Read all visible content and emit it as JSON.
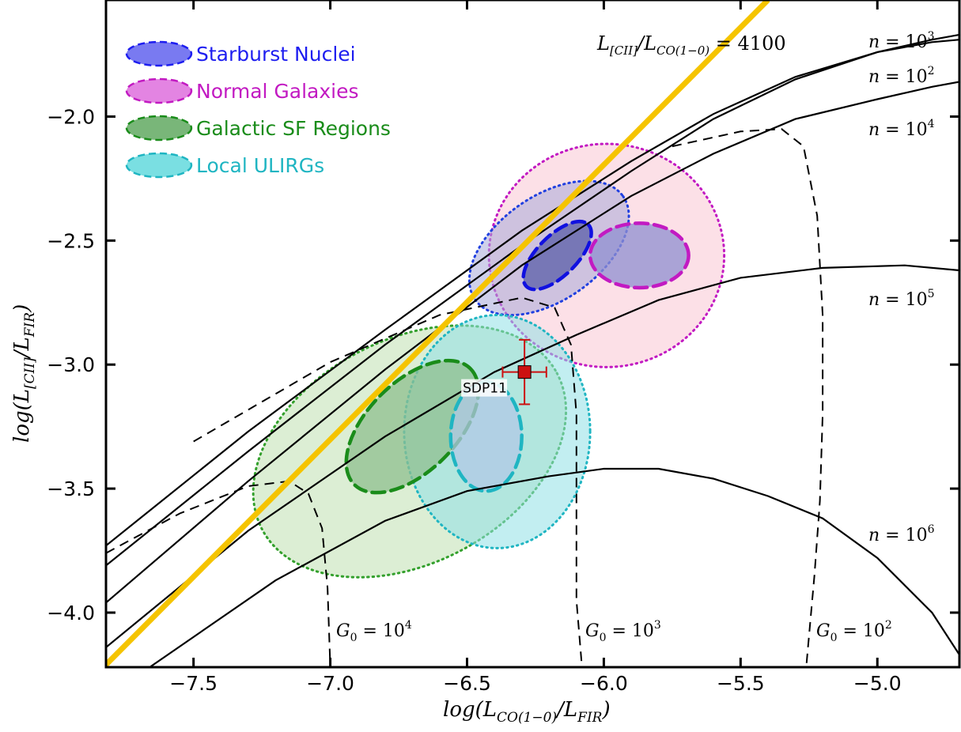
{
  "chart_data": {
    "type": "scatter",
    "xlabel": "log(L_CO(1−0)/L_FIR)",
    "ylabel": "log(L_[CII]/L_FIR)",
    "xlim": [
      -7.82,
      -4.7
    ],
    "ylim": [
      -4.22,
      -1.53
    ],
    "xticks": [
      -7.5,
      -7.0,
      -6.5,
      -6.0,
      -5.5,
      -5.0
    ],
    "yticks": [
      -4.0,
      -3.5,
      -3.0,
      -2.5,
      -2.0
    ],
    "xtick_labels": [
      "−7.5",
      "−7.0",
      "−6.5",
      "−6.0",
      "−5.5",
      "−5.0"
    ],
    "ytick_labels": [
      "−4.0",
      "−3.5",
      "−3.0",
      "−2.5",
      "−2.0"
    ],
    "legend_position": "top-left",
    "grid": false,
    "legend": [
      {
        "label": "Starburst Nuclei",
        "color": "#1e1ef0"
      },
      {
        "label": "Normal Galaxies",
        "color": "#c21ac2"
      },
      {
        "label": "Galactic SF Regions",
        "color": "#1a8c1a"
      },
      {
        "label": "Local ULIRGs",
        "color": "#1fb5c2"
      }
    ],
    "regions": [
      {
        "name": "Galactic SF Regions",
        "kind": "outer",
        "cx": -6.71,
        "cy": -3.35,
        "rx": 0.61,
        "ry": 0.45,
        "angle": 28,
        "fill": "#bfe0b0",
        "stroke": "#33a02c"
      },
      {
        "name": "Normal Galaxies",
        "kind": "outer",
        "cx": -5.99,
        "cy": -2.56,
        "rx": 0.43,
        "ry": 0.45,
        "angle": 0,
        "fill": "#f9c6d4",
        "stroke": "#c21ac2"
      },
      {
        "name": "Starburst Nuclei",
        "kind": "outer",
        "cx": -6.2,
        "cy": -2.53,
        "rx": 0.33,
        "ry": 0.21,
        "angle": 35,
        "fill": "#a8a9d8",
        "stroke": "#2040e0"
      },
      {
        "name": "Local ULIRGs",
        "kind": "outer",
        "cx": -6.39,
        "cy": -3.27,
        "rx": 0.34,
        "ry": 0.47,
        "angle": 0,
        "fill": "#8fe0e6",
        "stroke": "#1fb5c2"
      },
      {
        "name": "Galactic SF Regions",
        "kind": "inner",
        "cx": -6.7,
        "cy": -3.25,
        "rx": 0.3,
        "ry": 0.18,
        "angle": 45,
        "fill": "#8fbf8f",
        "stroke": "#1a8c1a"
      },
      {
        "name": "Normal Galaxies",
        "kind": "inner",
        "cx": -5.87,
        "cy": -2.56,
        "rx": 0.18,
        "ry": 0.13,
        "angle": 0,
        "fill": "#8f8fd0",
        "stroke": "#c21ac2"
      },
      {
        "name": "Starburst Nuclei",
        "kind": "inner",
        "cx": -6.17,
        "cy": -2.56,
        "rx": 0.16,
        "ry": 0.08,
        "angle": 45,
        "fill": "#5a5ea8",
        "stroke": "#1010e0"
      },
      {
        "name": "Local ULIRGs",
        "kind": "inner",
        "cx": -6.43,
        "cy": -3.29,
        "rx": 0.13,
        "ry": 0.22,
        "angle": 0,
        "fill": "#b0c8e6",
        "stroke": "#1fb5c2"
      }
    ],
    "ratio_line": {
      "label": "L_[CII]/L_CO(1−0) = 4100",
      "color": "#f5c400",
      "points": [
        [
          -7.82,
          -4.21
        ],
        [
          -5.4,
          -1.53
        ]
      ]
    },
    "density_curves": [
      {
        "label": "n=10^3",
        "label_x": -4.98,
        "label_y": -1.65,
        "points": [
          [
            -7.82,
            -3.81
          ],
          [
            -7.3,
            -3.35
          ],
          [
            -6.8,
            -2.92
          ],
          [
            -6.3,
            -2.52
          ],
          [
            -5.9,
            -2.22
          ],
          [
            -5.6,
            -2.01
          ],
          [
            -5.3,
            -1.85
          ],
          [
            -5.0,
            -1.74
          ],
          [
            -4.8,
            -1.69
          ],
          [
            -4.7,
            -1.67
          ]
        ]
      },
      {
        "label": "n=10^2",
        "label_x": -4.98,
        "label_y": -1.79,
        "points": [
          [
            -7.82,
            -3.73
          ],
          [
            -7.3,
            -3.27
          ],
          [
            -6.8,
            -2.86
          ],
          [
            -6.3,
            -2.46
          ],
          [
            -5.9,
            -2.18
          ],
          [
            -5.6,
            -1.99
          ],
          [
            -5.3,
            -1.84
          ],
          [
            -5.0,
            -1.74
          ],
          [
            -4.8,
            -1.7
          ],
          [
            -4.7,
            -1.69
          ]
        ]
      },
      {
        "label": "n=10^4",
        "label_x": -4.98,
        "label_y": -2.06,
        "points": [
          [
            -7.82,
            -3.96
          ],
          [
            -7.3,
            -3.47
          ],
          [
            -6.8,
            -3.02
          ],
          [
            -6.3,
            -2.6
          ],
          [
            -5.9,
            -2.32
          ],
          [
            -5.6,
            -2.15
          ],
          [
            -5.3,
            -2.01
          ],
          [
            -5.0,
            -1.93
          ],
          [
            -4.8,
            -1.88
          ],
          [
            -4.7,
            -1.86
          ]
        ]
      },
      {
        "label": "n=10^5",
        "label_x": -4.98,
        "label_y": -2.78,
        "points": [
          [
            -7.82,
            -4.14
          ],
          [
            -7.3,
            -3.67
          ],
          [
            -6.8,
            -3.29
          ],
          [
            -6.4,
            -3.03
          ],
          [
            -6.1,
            -2.88
          ],
          [
            -5.8,
            -2.74
          ],
          [
            -5.5,
            -2.65
          ],
          [
            -5.2,
            -2.61
          ],
          [
            -4.9,
            -2.6
          ],
          [
            -4.7,
            -2.62
          ]
        ]
      },
      {
        "label": "n=10^6",
        "label_x": -4.98,
        "label_y": -3.67,
        "points": [
          [
            -7.66,
            -4.22
          ],
          [
            -7.2,
            -3.87
          ],
          [
            -6.8,
            -3.63
          ],
          [
            -6.5,
            -3.51
          ],
          [
            -6.2,
            -3.45
          ],
          [
            -6.0,
            -3.42
          ],
          [
            -5.8,
            -3.42
          ],
          [
            -5.6,
            -3.46
          ],
          [
            -5.4,
            -3.53
          ],
          [
            -5.2,
            -3.62
          ],
          [
            -5.0,
            -3.78
          ],
          [
            -4.8,
            -4.0
          ],
          [
            -4.7,
            -4.17
          ]
        ]
      }
    ],
    "g0_curves": [
      {
        "label": "G0=10^4",
        "label_x": -6.97,
        "label_y": -4.09,
        "points": [
          [
            -7.82,
            -3.76
          ],
          [
            -7.55,
            -3.6
          ],
          [
            -7.3,
            -3.49
          ],
          [
            -7.15,
            -3.47
          ],
          [
            -7.08,
            -3.52
          ],
          [
            -7.03,
            -3.66
          ],
          [
            -7.01,
            -3.9
          ],
          [
            -7.0,
            -4.22
          ]
        ]
      },
      {
        "label": "G0=10^3",
        "label_x": -6.07,
        "label_y": -4.09,
        "points": [
          [
            -7.5,
            -3.31
          ],
          [
            -7.0,
            -2.99
          ],
          [
            -6.6,
            -2.8
          ],
          [
            -6.3,
            -2.73
          ],
          [
            -6.18,
            -2.77
          ],
          [
            -6.12,
            -2.92
          ],
          [
            -6.1,
            -3.2
          ],
          [
            -6.1,
            -3.6
          ],
          [
            -6.1,
            -3.95
          ],
          [
            -6.08,
            -4.22
          ]
        ]
      },
      {
        "label": "G0=10^2",
        "label_x": -5.22,
        "label_y": -4.09,
        "points": [
          [
            -5.75,
            -2.12
          ],
          [
            -5.5,
            -2.06
          ],
          [
            -5.35,
            -2.05
          ],
          [
            -5.27,
            -2.12
          ],
          [
            -5.22,
            -2.4
          ],
          [
            -5.2,
            -2.8
          ],
          [
            -5.2,
            -3.2
          ],
          [
            -5.21,
            -3.55
          ],
          [
            -5.23,
            -3.85
          ],
          [
            -5.26,
            -4.22
          ]
        ]
      }
    ],
    "points": [
      {
        "name": "SDP11",
        "x": -6.29,
        "y": -3.03,
        "xerr": 0.08,
        "yerr": 0.13,
        "color": "#cc1111"
      }
    ]
  }
}
